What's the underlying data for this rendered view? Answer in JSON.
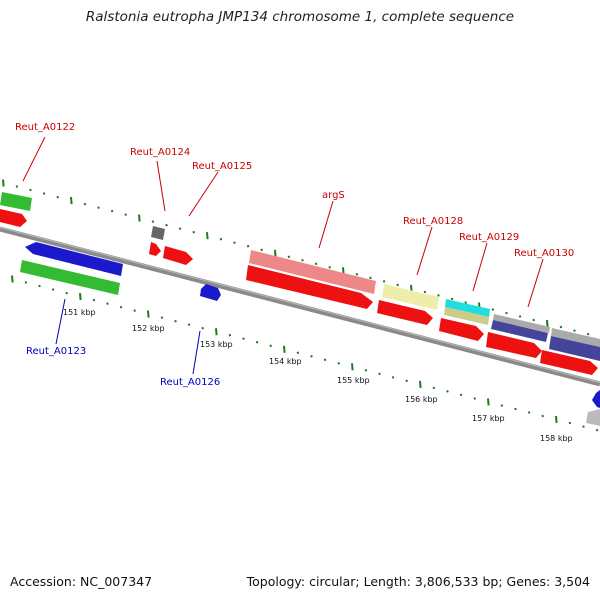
{
  "title": "Ralstonia eutropha JMP134 chromosome 1, complete sequence",
  "footer": {
    "accession": "Accession: NC_007347",
    "summary": "Topology: circular; Length: 3,806,533 bp; Genes: 3,504"
  },
  "tick_labels": [
    "151 kbp",
    "152 kbp",
    "153 kbp",
    "154 kbp",
    "155 kbp",
    "156 kbp",
    "157 kbp",
    "158 kbp"
  ],
  "genes_above": [
    "Reut_A0122",
    "Reut_A0124",
    "Reut_A0125",
    "argS",
    "Reut_A0128",
    "Reut_A0129",
    "Reut_A0130"
  ],
  "genes_below": [
    "Reut_A0123",
    "Reut_A0126"
  ],
  "colors": {
    "backbone": "#8a8a8a",
    "tick": "#1f7a1f",
    "gene_label_above": "#cc0000",
    "gene_label_below": "#0000bb",
    "cds_forward": "#ee1111",
    "cds_reverse": "#1a1acc",
    "gene_green": "#33bb33",
    "gene_pink": "#ee8888",
    "gene_yellow": "#eeeeaa",
    "gene_cyan": "#22dddd",
    "gene_navy": "#44449a",
    "gene_grey": "#666666"
  }
}
